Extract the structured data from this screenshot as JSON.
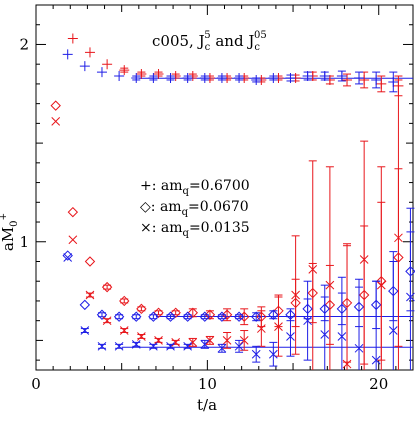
{
  "chart_data": {
    "type": "scatter",
    "title": "c005, J_c^5 and J_c^05",
    "title_parts": {
      "prefix": "c005, J",
      "sub1": "c",
      "sup1": "5",
      "mid": " and J",
      "sub2": "c",
      "sup2": "05"
    },
    "xlabel": "t/a",
    "ylabel_parts": {
      "base": "aM",
      "sub": "0",
      "sup": "+"
    },
    "xlim": [
      0,
      22
    ],
    "ylim": [
      0.35,
      2.2
    ],
    "x_ticks": [
      0,
      10,
      20
    ],
    "y_ticks": [
      1,
      2
    ],
    "grid": false,
    "legend_position": "middle-center",
    "legend": [
      {
        "symbol": "+",
        "label": ": am",
        "sub": "q",
        "value": "=0.6700"
      },
      {
        "symbol": "◇",
        "label": ": am",
        "sub": "q",
        "value": "=0.0670"
      },
      {
        "symbol": "×",
        "label": ": am",
        "sub": "q",
        "value": "=0.0135"
      }
    ],
    "colors": {
      "J5": "#e8161b",
      "J05": "#1e1ee6",
      "fit": "#1e1ee6"
    },
    "series": [
      {
        "marker": "plus",
        "color_key": "J5",
        "x_offset": 0.15,
        "points": [
          [
            2,
            2.03,
            0
          ],
          [
            3,
            1.96,
            0
          ],
          [
            4,
            1.9,
            0
          ],
          [
            5,
            1.87,
            0.01
          ],
          [
            6,
            1.85,
            0.01
          ],
          [
            7,
            1.85,
            0.01
          ],
          [
            8,
            1.84,
            0.01
          ],
          [
            9,
            1.84,
            0.01
          ],
          [
            10,
            1.83,
            0.01
          ],
          [
            11,
            1.83,
            0.01
          ],
          [
            12,
            1.83,
            0.01
          ],
          [
            13,
            1.82,
            0.01
          ],
          [
            14,
            1.83,
            0.01
          ],
          [
            15,
            1.83,
            0.015
          ],
          [
            16,
            1.84,
            0.02
          ],
          [
            17,
            1.82,
            0.02
          ],
          [
            18,
            1.82,
            0.03
          ],
          [
            19,
            1.82,
            0.04
          ],
          [
            20,
            1.8,
            0.04
          ],
          [
            21,
            1.79,
            0.05
          ],
          [
            22,
            1.78,
            0.06
          ]
        ]
      },
      {
        "marker": "plus",
        "color_key": "J05",
        "x_offset": -0.15,
        "points": [
          [
            2,
            1.95,
            0
          ],
          [
            3,
            1.89,
            0
          ],
          [
            4,
            1.86,
            0
          ],
          [
            5,
            1.84,
            0
          ],
          [
            6,
            1.83,
            0.01
          ],
          [
            7,
            1.83,
            0.01
          ],
          [
            8,
            1.83,
            0.01
          ],
          [
            9,
            1.83,
            0.01
          ],
          [
            10,
            1.83,
            0.01
          ],
          [
            11,
            1.83,
            0.01
          ],
          [
            12,
            1.83,
            0.01
          ],
          [
            13,
            1.82,
            0.01
          ],
          [
            14,
            1.83,
            0.01
          ],
          [
            15,
            1.83,
            0.015
          ],
          [
            16,
            1.84,
            0.02
          ],
          [
            17,
            1.84,
            0.02
          ],
          [
            18,
            1.84,
            0.025
          ],
          [
            19,
            1.83,
            0.03
          ],
          [
            20,
            1.82,
            0.04
          ],
          [
            21,
            1.81,
            0.05
          ]
        ]
      },
      {
        "marker": "diamond",
        "color_key": "J5",
        "x_offset": 0.15,
        "points": [
          [
            1,
            1.69,
            0
          ],
          [
            2,
            1.15,
            0
          ],
          [
            3,
            0.9,
            0
          ],
          [
            4,
            0.77,
            0.01
          ],
          [
            5,
            0.7,
            0.01
          ],
          [
            6,
            0.66,
            0.01
          ],
          [
            7,
            0.64,
            0.01
          ],
          [
            8,
            0.64,
            0.01
          ],
          [
            9,
            0.64,
            0.02
          ],
          [
            10,
            0.63,
            0.02
          ],
          [
            11,
            0.63,
            0.03
          ],
          [
            12,
            0.62,
            0.04
          ],
          [
            13,
            0.62,
            0.05
          ],
          [
            14,
            0.65,
            0.08
          ],
          [
            15,
            0.69,
            0.12
          ],
          [
            16,
            0.74,
            0.15
          ],
          [
            17,
            0.68,
            0.2
          ],
          [
            18,
            0.69,
            0.3
          ],
          [
            19,
            0.73,
            0.35
          ],
          [
            20,
            0.8,
            0.4
          ],
          [
            21,
            0.92,
            0.45
          ],
          [
            22,
            1.13,
            0.5
          ]
        ]
      },
      {
        "marker": "diamond",
        "color_key": "J05",
        "x_offset": -0.15,
        "points": [
          [
            2,
            0.93,
            0
          ],
          [
            3,
            0.68,
            0
          ],
          [
            4,
            0.63,
            0.01
          ],
          [
            5,
            0.62,
            0.01
          ],
          [
            6,
            0.62,
            0.01
          ],
          [
            7,
            0.62,
            0.01
          ],
          [
            8,
            0.62,
            0.01
          ],
          [
            9,
            0.62,
            0.01
          ],
          [
            10,
            0.62,
            0.01
          ],
          [
            11,
            0.62,
            0.01
          ],
          [
            12,
            0.62,
            0.01
          ],
          [
            13,
            0.62,
            0.02
          ],
          [
            14,
            0.63,
            0.02
          ],
          [
            15,
            0.63,
            0.03
          ],
          [
            16,
            0.66,
            0.05
          ],
          [
            17,
            0.66,
            0.06
          ],
          [
            18,
            0.66,
            0.08
          ],
          [
            19,
            0.67,
            0.1
          ],
          [
            20,
            0.68,
            0.12
          ],
          [
            21,
            0.75,
            0.15
          ],
          [
            22,
            0.85,
            0.2
          ]
        ]
      },
      {
        "marker": "cross",
        "color_key": "J5",
        "x_offset": 0.15,
        "points": [
          [
            1,
            1.61,
            0
          ],
          [
            2,
            1.01,
            0
          ],
          [
            3,
            0.73,
            0.01
          ],
          [
            4,
            0.6,
            0.01
          ],
          [
            5,
            0.55,
            0.01
          ],
          [
            6,
            0.52,
            0.01
          ],
          [
            7,
            0.5,
            0.01
          ],
          [
            8,
            0.49,
            0.01
          ],
          [
            9,
            0.49,
            0.02
          ],
          [
            10,
            0.5,
            0.02
          ],
          [
            11,
            0.5,
            0.04
          ],
          [
            12,
            0.5,
            0.05
          ],
          [
            13,
            0.56,
            0.09
          ],
          [
            14,
            0.57,
            0.15
          ],
          [
            15,
            0.73,
            0.3
          ],
          [
            16,
            0.86,
            0.55
          ],
          [
            17,
            0.78,
            0.6
          ],
          [
            18,
            0.38,
            0.6
          ],
          [
            19,
            0.91,
            0.6
          ],
          [
            20,
            0.78,
            0.6
          ],
          [
            21,
            1.02,
            0.8
          ]
        ]
      },
      {
        "marker": "cross",
        "color_key": "J05",
        "x_offset": -0.15,
        "points": [
          [
            2,
            0.92,
            0
          ],
          [
            3,
            0.55,
            0.01
          ],
          [
            4,
            0.47,
            0.01
          ],
          [
            5,
            0.47,
            0.01
          ],
          [
            6,
            0.48,
            0.01
          ],
          [
            7,
            0.47,
            0.01
          ],
          [
            8,
            0.47,
            0.01
          ],
          [
            9,
            0.47,
            0.01
          ],
          [
            10,
            0.48,
            0.02
          ],
          [
            11,
            0.46,
            0.02
          ],
          [
            12,
            0.47,
            0.03
          ],
          [
            13,
            0.43,
            0.04
          ],
          [
            14,
            0.43,
            0.06
          ],
          [
            15,
            0.52,
            0.1
          ],
          [
            16,
            0.6,
            0.2
          ],
          [
            17,
            0.53,
            0.25
          ],
          [
            18,
            0.52,
            0.3
          ],
          [
            19,
            0.46,
            0.35
          ],
          [
            20,
            0.4,
            0.4
          ],
          [
            21,
            0.55,
            0.4
          ],
          [
            22,
            0.72,
            0.45
          ]
        ]
      }
    ],
    "fits": [
      {
        "value": 1.829,
        "x_range": [
          6,
          22
        ]
      },
      {
        "value": 0.621,
        "x_range": [
          7,
          22
        ]
      },
      {
        "value": 0.465,
        "x_range": [
          5,
          22
        ]
      }
    ]
  }
}
